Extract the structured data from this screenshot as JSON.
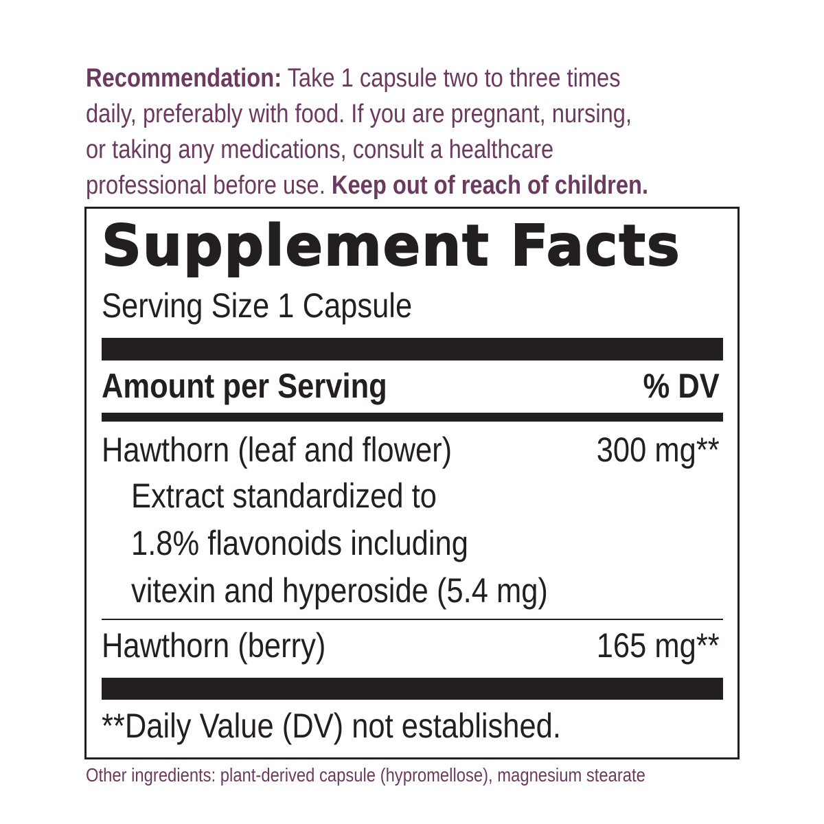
{
  "recommendation": {
    "label": "Recommendation:",
    "line1_rest": " Take 1 capsule two to three times",
    "line2": "daily, preferably with food. If you are pregnant, nursing,",
    "line3": "or taking any medications, consult a healthcare",
    "line4_plain": "professional before use. ",
    "warning": "Keep out of reach of children."
  },
  "facts": {
    "title": "Supplement Facts",
    "serving_size": "Serving Size 1 Capsule",
    "header_amount": "Amount per Serving",
    "header_dv": "% DV",
    "rows": [
      {
        "name": "Hawthorn (leaf and flower)",
        "amount": "300 mg**",
        "detail": [
          "Extract standardized to",
          "1.8% flavonoids including",
          "vitexin and hyperoside (5.4 mg)"
        ]
      },
      {
        "name": "Hawthorn (berry)",
        "amount": "165 mg**"
      }
    ],
    "footnote": "**Daily Value (DV) not established."
  },
  "other_ingredients": "Other ingredients: plant-derived capsule (hypromellose), magnesium stearate",
  "colors": {
    "accent": "#6b3a5e",
    "text": "#231f20"
  }
}
